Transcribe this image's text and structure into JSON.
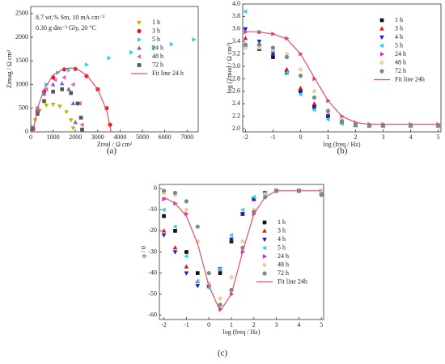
{
  "chart_data": [
    {
      "type": "scatter",
      "label": "(a)",
      "xlabel": "Zreal / Ω cm²",
      "ylabel": "Zimag / Ω cm²",
      "annotations": [
        "8.7 wt.% Sm, 10 mA cm⁻²",
        "0.30 g dm⁻³ Gly, 20 °C"
      ],
      "xlim": [
        0,
        7500
      ],
      "xticks": [
        0,
        1000,
        2000,
        3000,
        4000,
        5000,
        6000,
        7000
      ],
      "ylim": [
        0,
        2650
      ],
      "yticks": [
        0,
        500,
        1000,
        1500,
        2000,
        2500
      ],
      "legend": "upper right",
      "series": [
        {
          "name": "1 h",
          "color": "#c8b400",
          "marker": "triangle-down",
          "x": [
            100,
            200,
            400,
            700,
            1000,
            1300,
            1600,
            1800,
            1900
          ],
          "values": [
            50,
            250,
            450,
            560,
            580,
            540,
            420,
            250,
            80
          ]
        },
        {
          "name": "3 h",
          "color": "#e8141c",
          "marker": "circle",
          "x": [
            100,
            300,
            600,
            1000,
            1500,
            2000,
            2500,
            3000,
            3400,
            3550
          ],
          "values": [
            80,
            450,
            850,
            1150,
            1320,
            1330,
            1180,
            900,
            500,
            150
          ]
        },
        {
          "name": "5 h",
          "color": "#2cd2e6",
          "marker": "triangle-right",
          "x": [
            100,
            300,
            700,
            1200,
            1700,
            2500,
            3500,
            4500,
            5500,
            6300,
            7300
          ],
          "values": [
            100,
            500,
            1000,
            1250,
            1300,
            1420,
            1560,
            1680,
            1780,
            1850,
            1950
          ]
        },
        {
          "name": "24 h",
          "color": "#6a6ad8",
          "marker": "triangle-up",
          "x": [
            100,
            300,
            600,
            1000,
            1400,
            1700,
            1900,
            2000
          ],
          "values": [
            80,
            450,
            800,
            1000,
            1020,
            900,
            600,
            200
          ]
        },
        {
          "name": "48 h",
          "color": "#d86aa8",
          "marker": "triangle-left",
          "x": [
            100,
            300,
            700,
            1100,
            1500,
            1900,
            2200,
            2300
          ],
          "values": [
            80,
            500,
            900,
            1100,
            1150,
            1000,
            600,
            150
          ]
        },
        {
          "name": "72 h",
          "color": "#555555",
          "marker": "square",
          "x": [
            100,
            300,
            600,
            1000,
            1400,
            1800,
            2100,
            2250,
            2300
          ],
          "values": [
            60,
            380,
            650,
            850,
            900,
            820,
            600,
            300,
            50
          ]
        },
        {
          "name": "Fit line 24 h",
          "color": "#e0506a",
          "marker": "line",
          "x": [
            100,
            300,
            600,
            1000,
            1500,
            2000,
            2500,
            3000,
            3400,
            3600
          ],
          "values": [
            0,
            500,
            900,
            1200,
            1340,
            1350,
            1200,
            900,
            450,
            0
          ]
        }
      ]
    },
    {
      "type": "scatter",
      "label": "(b)",
      "xlabel": "log (freq / Hz)",
      "ylabel": "log (Zmod / Ω cm²)",
      "xlim": [
        -2.1,
        5.1
      ],
      "xticks": [
        -2,
        -1,
        0,
        1,
        2,
        3,
        4,
        5
      ],
      "ylim": [
        1.95,
        4.0
      ],
      "yticks": [
        {
          "value": 2,
          "label": "2.0"
        },
        2.2,
        2.4,
        2.6,
        2.8,
        {
          "value": 3,
          "label": "3.0"
        },
        3.2,
        3.4,
        3.6,
        3.8,
        {
          "value": 4,
          "label": "4.0"
        }
      ],
      "legend": "upper right",
      "x": [
        -2,
        -1.5,
        -1,
        -0.5,
        0,
        0.5,
        1,
        1.5,
        2,
        2.5,
        3,
        4,
        5
      ],
      "series": [
        {
          "name": "1 h",
          "color": "#111111",
          "marker": "square",
          "values": [
            3.32,
            3.28,
            3.15,
            2.9,
            2.6,
            2.35,
            2.2,
            2.1,
            2.06,
            2.05,
            2.05,
            2.05,
            2.05
          ]
        },
        {
          "name": "3 h",
          "color": "#e8141c",
          "marker": "triangle-up",
          "values": [
            3.45,
            3.35,
            3.2,
            2.95,
            2.65,
            2.4,
            2.22,
            2.1,
            2.06,
            2.05,
            2.05,
            2.05,
            2.05
          ]
        },
        {
          "name": "4 h",
          "color": "#1c1cc8",
          "marker": "triangle-down",
          "values": [
            3.6,
            3.4,
            3.2,
            2.9,
            2.6,
            2.35,
            2.2,
            2.1,
            2.06,
            2.05,
            2.05,
            2.05,
            2.05
          ]
        },
        {
          "name": "5 h",
          "color": "#2cd2e6",
          "marker": "triangle-left",
          "values": [
            3.88,
            3.55,
            3.25,
            2.9,
            2.55,
            2.3,
            2.15,
            2.08,
            2.05,
            2.04,
            2.04,
            2.04,
            2.04
          ]
        },
        {
          "name": "24 h",
          "color": "#e02ca0",
          "marker": "triangle-right",
          "values": [
            3.55,
            3.55,
            3.52,
            3.45,
            3.2,
            2.8,
            2.45,
            2.2,
            2.1,
            2.07,
            2.07,
            2.07,
            2.07
          ]
        },
        {
          "name": "48 h",
          "color": "#f0d2a0",
          "marker": "circle",
          "values": [
            3.3,
            3.3,
            3.28,
            3.2,
            2.95,
            2.6,
            2.3,
            2.15,
            2.08,
            2.06,
            2.06,
            2.06,
            2.06
          ]
        },
        {
          "name": "72 h",
          "color": "#7a8a8a",
          "marker": "circle",
          "values": [
            3.35,
            3.35,
            3.3,
            3.15,
            2.85,
            2.5,
            2.28,
            2.12,
            2.07,
            2.06,
            2.06,
            2.06,
            2.06
          ]
        },
        {
          "name": "Fit line 24h",
          "color": "#e0506a",
          "marker": "line",
          "values": [
            3.56,
            3.55,
            3.52,
            3.44,
            3.2,
            2.82,
            2.45,
            2.2,
            2.1,
            2.07,
            2.07,
            2.07,
            2.07
          ]
        }
      ]
    },
    {
      "type": "scatter",
      "label": "(c)",
      "xlabel": "log (freq / Hz)",
      "ylabel": "φ / 0",
      "xlim": [
        -2.2,
        5.1
      ],
      "xticks": [
        -2,
        -1,
        0,
        1,
        2,
        3,
        4,
        5
      ],
      "ylim": [
        -62,
        2
      ],
      "yticks": [
        -60,
        -50,
        -40,
        -30,
        -20,
        -10,
        0
      ],
      "legend": "lower right",
      "x": [
        -2,
        -1.5,
        -1,
        -0.5,
        0,
        0.5,
        1,
        1.5,
        2,
        2.5,
        3,
        4,
        5
      ],
      "series": [
        {
          "name": "1 h",
          "color": "#111111",
          "marker": "square",
          "values": [
            -13,
            -20,
            -30,
            -40,
            -46,
            -40,
            -25,
            -12,
            -5,
            -2,
            -1,
            -1,
            -1
          ]
        },
        {
          "name": "3 h",
          "color": "#e8141c",
          "marker": "triangle-up",
          "values": [
            -20,
            -28,
            -37,
            -44,
            -45,
            -38,
            -24,
            -12,
            -5,
            -2,
            -1,
            -1,
            -2
          ]
        },
        {
          "name": "4 h",
          "color": "#1c1cc8",
          "marker": "triangle-down",
          "values": [
            -22,
            -30,
            -40,
            -46,
            -46,
            -38,
            -24,
            -12,
            -5,
            -2,
            -1,
            -1,
            -2
          ]
        },
        {
          "name": "5 h",
          "color": "#2cd2e6",
          "marker": "triangle-left",
          "values": [
            -10,
            -18,
            -32,
            -44,
            -47,
            -38,
            -22,
            -10,
            -4,
            -2,
            -1,
            -1,
            -1
          ]
        },
        {
          "name": "24 h",
          "color": "#e02ca0",
          "marker": "triangle-right",
          "values": [
            -5,
            -7,
            -12,
            -25,
            -45,
            -57,
            -50,
            -30,
            -12,
            -4,
            -1,
            -1,
            -1
          ]
        },
        {
          "name": "48 h",
          "color": "#f0d2a0",
          "marker": "circle",
          "values": [
            -2,
            -3,
            -10,
            -25,
            -45,
            -52,
            -42,
            -25,
            -10,
            -3,
            -1,
            -1,
            -1
          ]
        },
        {
          "name": "72 h",
          "color": "#7a8a8a",
          "marker": "circle",
          "values": [
            -1,
            -2,
            -6,
            -18,
            -40,
            -55,
            -48,
            -28,
            -11,
            -4,
            -1,
            -1,
            -3
          ]
        },
        {
          "name": "Fit line 24h",
          "color": "#e0506a",
          "marker": "line",
          "values": [
            -4,
            -7,
            -13,
            -26,
            -46,
            -58,
            -50,
            -30,
            -12,
            -4,
            -1,
            -1,
            -1
          ]
        }
      ]
    }
  ]
}
